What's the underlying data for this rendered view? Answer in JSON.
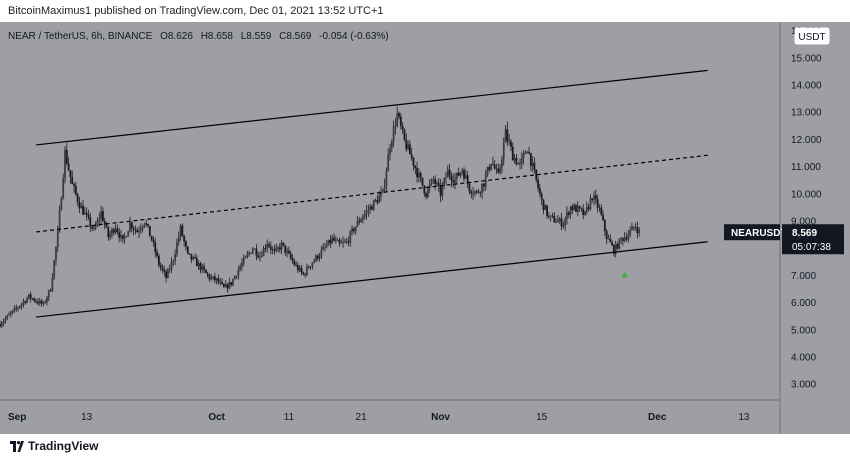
{
  "header": {
    "publisher_line": "BitcoinMaximus1 published on TradingView.com, Dec 01, 2021 13:52 UTC+1"
  },
  "legend": {
    "symbol": "NEAR / TetherUS, 6h, BINANCE",
    "o_label": "O",
    "o_value": "8.626",
    "h_label": "H",
    "h_value": "8.658",
    "l_label": "L",
    "l_value": "8.559",
    "c_label": "C",
    "c_value": "8.569",
    "change": "-0.054 (-0.63%)"
  },
  "currency_badge": "USDT",
  "price_tag": {
    "symbol": "NEARUSDT",
    "price": "8.569",
    "countdown": "05:07:38"
  },
  "footer": {
    "brand": "TradingView"
  },
  "colors": {
    "background": "#9e9fa4",
    "axis_bg": "#9e9fa4",
    "candle": "#1a1a1a",
    "channel": "#000000",
    "marker": "#43b04a",
    "price_tag_bg": "#131722"
  },
  "chart_data": {
    "type": "candlestick",
    "symbol": "NEARUSDT",
    "timeframe": "6h",
    "exchange": "BINANCE",
    "y_ticks": [
      "3.000",
      "4.000",
      "5.000",
      "6.000",
      "7.000",
      "8.000",
      "9.000",
      "10.000",
      "11.000",
      "12.000",
      "13.000",
      "14.000",
      "15.000",
      "16.000"
    ],
    "ylim": [
      2.4,
      16.3
    ],
    "x_ticks": [
      "Sep",
      "13",
      "Oct",
      "11",
      "21",
      "Nov",
      "15",
      "Dec",
      "13"
    ],
    "x_tick_days": [
      0,
      12,
      30,
      40,
      50,
      61,
      75,
      91,
      103
    ],
    "xlim": [
      0,
      108
    ],
    "price_path": [
      [
        0,
        5.2
      ],
      [
        2,
        5.7
      ],
      [
        4,
        6.2
      ],
      [
        6,
        5.9
      ],
      [
        7,
        6.5
      ],
      [
        8,
        8.5
      ],
      [
        9,
        11.5
      ],
      [
        10,
        10.3
      ],
      [
        11,
        9.6
      ],
      [
        12,
        9.1
      ],
      [
        13,
        8.6
      ],
      [
        14,
        9.3
      ],
      [
        15,
        8.4
      ],
      [
        16,
        8.8
      ],
      [
        17,
        8.2
      ],
      [
        18,
        8.9
      ],
      [
        19,
        8.6
      ],
      [
        20,
        9.0
      ],
      [
        21,
        8.3
      ],
      [
        22,
        7.4
      ],
      [
        23,
        6.9
      ],
      [
        24,
        7.6
      ],
      [
        25,
        8.7
      ],
      [
        26,
        7.7
      ],
      [
        27,
        7.5
      ],
      [
        28,
        7.2
      ],
      [
        29,
        6.9
      ],
      [
        30,
        6.8
      ],
      [
        31,
        6.5
      ],
      [
        32,
        6.7
      ],
      [
        33,
        7.2
      ],
      [
        34,
        7.6
      ],
      [
        35,
        8.0
      ],
      [
        36,
        7.7
      ],
      [
        37,
        8.2
      ],
      [
        38,
        7.8
      ],
      [
        39,
        8.1
      ],
      [
        40,
        7.7
      ],
      [
        41,
        7.3
      ],
      [
        42,
        7.0
      ],
      [
        43,
        7.4
      ],
      [
        44,
        7.7
      ],
      [
        45,
        8.0
      ],
      [
        46,
        8.3
      ],
      [
        47,
        8.1
      ],
      [
        48,
        8.2
      ],
      [
        49,
        8.7
      ],
      [
        50,
        9.1
      ],
      [
        51,
        9.4
      ],
      [
        52,
        9.7
      ],
      [
        53,
        10.0
      ],
      [
        54,
        11.8
      ],
      [
        55,
        12.9
      ],
      [
        56,
        11.9
      ],
      [
        57,
        11.3
      ],
      [
        58,
        10.6
      ],
      [
        59,
        10.0
      ],
      [
        60,
        10.5
      ],
      [
        61,
        10.0
      ],
      [
        62,
        10.8
      ],
      [
        63,
        10.5
      ],
      [
        64,
        10.9
      ],
      [
        65,
        10.2
      ],
      [
        66,
        10.0
      ],
      [
        67,
        10.4
      ],
      [
        68,
        11.2
      ],
      [
        69,
        10.6
      ],
      [
        70,
        12.2
      ],
      [
        71,
        11.4
      ],
      [
        72,
        11.0
      ],
      [
        73,
        11.7
      ],
      [
        74,
        10.7
      ],
      [
        75,
        9.7
      ],
      [
        76,
        9.1
      ],
      [
        77,
        9.0
      ],
      [
        78,
        8.9
      ],
      [
        79,
        9.5
      ],
      [
        80,
        9.4
      ],
      [
        81,
        9.2
      ],
      [
        82,
        9.9
      ],
      [
        83,
        9.4
      ],
      [
        84,
        8.4
      ],
      [
        85,
        7.9
      ],
      [
        86,
        8.3
      ],
      [
        87,
        8.5
      ],
      [
        88,
        8.8
      ],
      [
        88.5,
        8.57
      ]
    ],
    "trendlines": [
      {
        "name": "channel-upper",
        "x1": 5,
        "y1": 11.78,
        "x2": 98,
        "y2": 14.52,
        "style": "solid"
      },
      {
        "name": "channel-middle",
        "x1": 5,
        "y1": 8.58,
        "x2": 98,
        "y2": 11.4,
        "style": "dashed"
      },
      {
        "name": "channel-lower",
        "x1": 5,
        "y1": 5.45,
        "x2": 98,
        "y2": 8.22,
        "style": "solid"
      }
    ],
    "marker": {
      "x": 86.5,
      "y": 7.02,
      "shape": "triangle-up"
    },
    "last_price": 8.569,
    "grid": false
  }
}
